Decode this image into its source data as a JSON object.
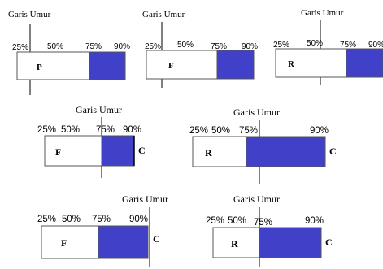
{
  "diagrams": [
    {
      "age_line_label": "Garis Umur",
      "markers": [
        "25%",
        "50%",
        "75%",
        "90%"
      ],
      "box_letter": "P",
      "side_letter": "",
      "fill_color": "#4040c8"
    },
    {
      "age_line_label": "Garis Umur",
      "markers": [
        "25%",
        "50%",
        "75%",
        "90%"
      ],
      "box_letter": "F",
      "side_letter": "",
      "fill_color": "#4040c8"
    },
    {
      "age_line_label": "Garis Umur",
      "markers": [
        "25%",
        "50%",
        "75%",
        "90%"
      ],
      "box_letter": "R",
      "side_letter": "",
      "fill_color": "#4040c8"
    },
    {
      "age_line_label": "Garis Umur",
      "markers": [
        "25%",
        "50%",
        "75%",
        "90%"
      ],
      "box_letter": "F",
      "side_letter": "C",
      "fill_color": "#4040c8"
    },
    {
      "age_line_label": "Garis Umur",
      "markers": [
        "25%",
        "50%",
        "75%",
        "90%"
      ],
      "box_letter": "R",
      "side_letter": "C",
      "fill_color": "#4040c8"
    },
    {
      "age_line_label": "Garis Umur",
      "markers": [
        "25%",
        "50%",
        "75%",
        "90%"
      ],
      "box_letter": "F",
      "side_letter": "C",
      "fill_color": "#4040c8"
    },
    {
      "age_line_label": "Garis Umur",
      "markers": [
        "25%",
        "50%",
        "75%",
        "90%"
      ],
      "box_letter": "R",
      "side_letter": "C",
      "fill_color": "#4040c8"
    }
  ]
}
